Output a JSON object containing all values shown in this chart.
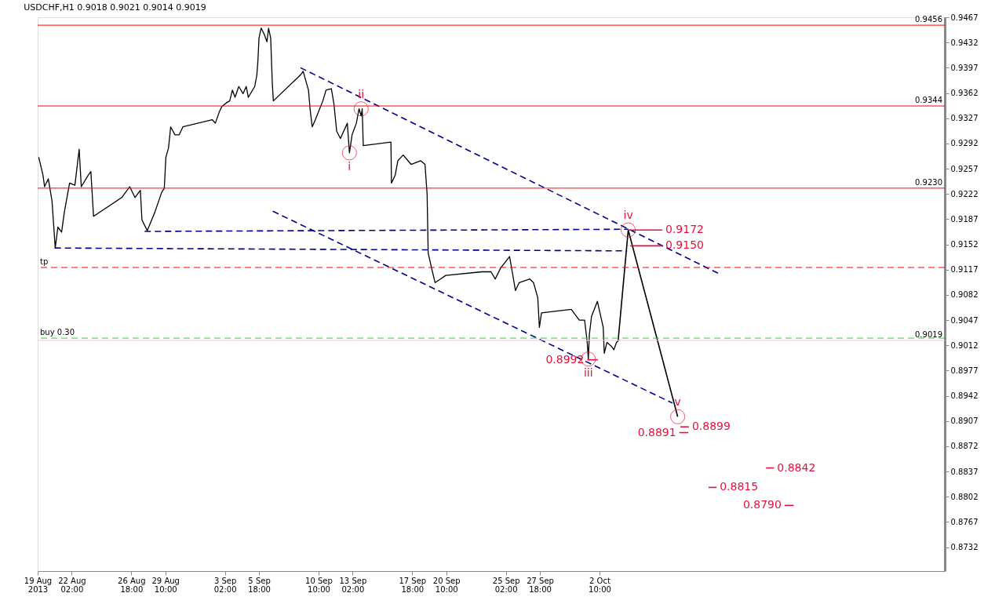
{
  "chart_data": {
    "type": "line",
    "title": "USDCHF,H1  0.9018 0.9021 0.9014 0.9019",
    "xlim": [
      "2013-08-19T10:00",
      "2013-10-29T11:00"
    ],
    "ylim": [
      0.8699,
      0.9467
    ],
    "xticks": [
      {
        "value": "2013-08-19T10:00",
        "label": "19 Aug 2013"
      },
      {
        "value": "2013-08-22T02:00",
        "label": "22 Aug 02:00"
      },
      {
        "value": "2013-08-26T18:00",
        "label": "26 Aug 18:00"
      },
      {
        "value": "2013-08-29T10:00",
        "label": "29 Aug 10:00"
      },
      {
        "value": "2013-09-03T02:00",
        "label": "3 Sep 02:00"
      },
      {
        "value": "2013-09-05T18:00",
        "label": "5 Sep 18:00"
      },
      {
        "value": "2013-09-10T10:00",
        "label": "10 Sep 10:00"
      },
      {
        "value": "2013-09-13T02:00",
        "label": "13 Sep 02:00"
      },
      {
        "value": "2013-09-17T18:00",
        "label": "17 Sep 18:00"
      },
      {
        "value": "2013-09-20T10:00",
        "label": "20 Sep 10:00"
      },
      {
        "value": "2013-09-25T02:00",
        "label": "25 Sep 02:00"
      },
      {
        "value": "2013-09-27T18:00",
        "label": "27 Sep 18:00"
      },
      {
        "value": "2013-10-02T10:00",
        "label": "2 Oct 10:00"
      }
    ],
    "yticks": [
      0.8732,
      0.8767,
      0.8802,
      0.8837,
      0.8872,
      0.8907,
      0.8942,
      0.8977,
      0.9012,
      0.9047,
      0.9082,
      0.9117,
      0.9152,
      0.9187,
      0.9222,
      0.9257,
      0.9292,
      0.9327,
      0.9362,
      0.9397,
      0.9432,
      0.9467
    ],
    "grid": false,
    "series": [
      {
        "color": "#000000",
        "line_style": "solid",
        "x": [
          "2013-08-19T12:00",
          "2013-08-19T20:00",
          "2013-08-19T23:00",
          "2013-08-20T06:00",
          "2013-08-20T13:00",
          "2013-08-20T19:00",
          "2013-08-21T00:00",
          "2013-08-21T07:00",
          "2013-08-21T12:00",
          "2013-08-21T22:00",
          "2013-08-22T08:00",
          "2013-08-22T16:00",
          "2013-08-22T20:00",
          "2013-08-23T09:00",
          "2013-08-23T14:00",
          "2013-08-23T19:00",
          "2013-08-26T00:00",
          "2013-08-26T15:00",
          "2013-08-27T01:00",
          "2013-08-27T11:00",
          "2013-08-27T14:00",
          "2013-08-28T00:00",
          "2013-08-28T14:00",
          "2013-08-29T03:00",
          "2013-08-29T08:00",
          "2013-08-29T11:00",
          "2013-08-29T16:00",
          "2013-08-29T20:00",
          "2013-08-30T04:00",
          "2013-08-30T12:00",
          "2013-08-30T19:00",
          "2013-09-02T02:00",
          "2013-09-02T08:00",
          "2013-09-02T15:00",
          "2013-09-02T20:00",
          "2013-09-03T04:00",
          "2013-09-03T11:00",
          "2013-09-03T16:00",
          "2013-09-03T21:00",
          "2013-09-04T04:00",
          "2013-09-04T12:00",
          "2013-09-04T18:00",
          "2013-09-04T22:00",
          "2013-09-05T10:00",
          "2013-09-05T14:00",
          "2013-09-05T16:00",
          "2013-09-05T18:00",
          "2013-09-05T22:00",
          "2013-09-06T04:00",
          "2013-09-06T09:00",
          "2013-09-06T12:00",
          "2013-09-06T16:00",
          "2013-09-06T19:00",
          "2013-09-06T21:00",
          "2013-09-09T00:00",
          "2013-09-09T05:00",
          "2013-09-09T15:00",
          "2013-09-09T18:00",
          "2013-09-09T22:00",
          "2013-09-10T04:00",
          "2013-09-10T18:00",
          "2013-09-11T00:00",
          "2013-09-11T10:00",
          "2013-09-11T15:00",
          "2013-09-11T20:00",
          "2013-09-12T03:00",
          "2013-09-12T16:00",
          "2013-09-12T20:00",
          "2013-09-13T01:00",
          "2013-09-13T09:00",
          "2013-09-13T14:00",
          "2013-09-13T18:00",
          "2013-09-13T20:00",
          "2013-09-13T22:00",
          "2013-09-16T02:00",
          "2013-09-16T03:00",
          "2013-09-16T10:00",
          "2013-09-16T15:00",
          "2013-09-17T01:00",
          "2013-09-17T16:00",
          "2013-09-18T10:00",
          "2013-09-18T18:00",
          "2013-09-18T22:00",
          "2013-09-19T00:00",
          "2013-09-19T08:00",
          "2013-09-19T13:00",
          "2013-09-19T23:00",
          "2013-09-20T09:00",
          "2013-09-23T05:00",
          "2013-09-23T22:00",
          "2013-09-24T06:00",
          "2013-09-24T16:00",
          "2013-09-25T09:00",
          "2013-09-25T14:00",
          "2013-09-25T20:00",
          "2013-09-26T03:00",
          "2013-09-26T23:00",
          "2013-09-27T06:00",
          "2013-09-27T14:00",
          "2013-09-27T17:00",
          "2013-09-27T21:00",
          "2013-09-30T05:00",
          "2013-09-30T20:00",
          "2013-10-01T06:00",
          "2013-10-01T11:00",
          "2013-10-01T13:00",
          "2013-10-01T15:00",
          "2013-10-01T19:00",
          "2013-10-02T06:00",
          "2013-10-02T14:00",
          "2013-10-02T17:00",
          "2013-10-02T19:00",
          "2013-10-03T00:00",
          "2013-10-03T08:00",
          "2013-10-03T13:00",
          "2013-10-03T18:00",
          "2013-10-03T21:00"
        ],
        "values": [
          0.9273,
          0.9248,
          0.9232,
          0.9243,
          0.9212,
          0.9147,
          0.9176,
          0.9169,
          0.9196,
          0.9237,
          0.9234,
          0.9284,
          0.9232,
          0.9248,
          0.9253,
          0.9191,
          0.9217,
          0.9232,
          0.9217,
          0.9227,
          0.9186,
          0.9171,
          0.9196,
          0.9224,
          0.923,
          0.9273,
          0.9286,
          0.9315,
          0.9304,
          0.9304,
          0.9315,
          0.9325,
          0.932,
          0.9335,
          0.9343,
          0.9348,
          0.9351,
          0.9366,
          0.9356,
          0.9371,
          0.9361,
          0.9371,
          0.9356,
          0.9371,
          0.9387,
          0.9407,
          0.9438,
          0.9452,
          0.9443,
          0.9433,
          0.9452,
          0.9438,
          0.9376,
          0.9351,
          0.9387,
          0.9392,
          0.9366,
          0.934,
          0.9315,
          0.9325,
          0.9351,
          0.9366,
          0.9368,
          0.9346,
          0.9309,
          0.9299,
          0.932,
          0.9279,
          0.9304,
          0.932,
          0.934,
          0.933,
          0.934,
          0.9289,
          0.9294,
          0.9237,
          0.9248,
          0.9268,
          0.9276,
          0.9263,
          0.9268,
          0.9263,
          0.9222,
          0.914,
          0.9114,
          0.9099,
          0.9104,
          0.9109,
          0.9114,
          0.9114,
          0.9104,
          0.9119,
          0.9135,
          0.9114,
          0.9088,
          0.9099,
          0.9104,
          0.9099,
          0.9078,
          0.9037,
          0.9057,
          0.9062,
          0.9047,
          0.9047,
          0.9016,
          0.8993,
          0.9027,
          0.9052,
          0.9073,
          0.9047,
          0.9037,
          0.9001,
          0.9016,
          0.9011,
          0.9006,
          0.9016,
          0.9018
        ]
      },
      {
        "color": "#000000",
        "line_style": "solid",
        "x": [
          "2013-10-03T21:00",
          "2013-10-04T16:00",
          "2013-10-08T13:00"
        ],
        "values": [
          0.9018,
          0.9172,
          0.8913
        ]
      },
      {
        "color": "#00008b",
        "line_style": "dashed",
        "x": [
          "2013-09-09T00:00",
          "2013-10-11T17:00"
        ],
        "values": [
          0.9397,
          0.9112
        ]
      },
      {
        "color": "#00008b",
        "line_style": "dashed",
        "x": [
          "2013-09-06T20:00",
          "2013-10-08T03:00"
        ],
        "values": [
          0.9198,
          0.8932
        ]
      },
      {
        "color": "#00008b",
        "line_style": "dashed",
        "x": [
          "2013-08-27T19:00",
          "2013-10-04T16:00"
        ],
        "values": [
          0.917,
          0.9173
        ]
      },
      {
        "color": "#00008b",
        "line_style": "dashed",
        "x": [
          "2013-08-20T18:00",
          "2013-10-04T14:00"
        ],
        "values": [
          0.9147,
          0.9143
        ]
      },
      {
        "name": "0.9172",
        "color": "#e8103a",
        "line_style": "solid",
        "x": [
          "2013-10-04T16:00",
          "2013-10-07T08:00"
        ],
        "values": [
          0.9172,
          0.9172
        ]
      },
      {
        "name": "0.9150",
        "color": "#e8103a",
        "line_style": "solid",
        "x": [
          "2013-10-04T20:00",
          "2013-10-07T08:00"
        ],
        "values": [
          0.915,
          0.915
        ]
      },
      {
        "name": "0.8992",
        "color": "#e8103a",
        "line_style": "solid",
        "x": [
          "2013-10-02T07:00",
          "2013-10-01T11:00"
        ],
        "values": [
          0.8992,
          0.8992
        ]
      },
      {
        "name": "0.8891",
        "color": "#e8103a",
        "line_style": "solid",
        "x": [
          "2013-10-09T09:00",
          "2013-10-08T16:00"
        ],
        "values": [
          0.8891,
          0.8891
        ]
      },
      {
        "name": "0.8899",
        "color": "#e8103a",
        "line_style": "solid",
        "x": [
          "2013-10-08T18:00",
          "2013-10-09T10:00"
        ],
        "values": [
          0.8899,
          0.8899
        ]
      },
      {
        "name": "0.8842",
        "color": "#e8103a",
        "line_style": "solid",
        "x": [
          "2013-10-15T11:00",
          "2013-10-16T02:00"
        ],
        "values": [
          0.8842,
          0.8842
        ]
      },
      {
        "name": "0.8815",
        "color": "#e8103a",
        "line_style": "solid",
        "x": [
          "2013-10-10T23:00",
          "2013-10-11T14:00"
        ],
        "values": [
          0.8815,
          0.8815
        ]
      },
      {
        "name": "0.8790",
        "color": "#e8103a",
        "line_style": "solid",
        "x": [
          "2013-10-17T15:00",
          "2013-10-16T22:00"
        ],
        "values": [
          0.879,
          0.879
        ]
      }
    ],
    "ref_lines": [
      {
        "axis": "y",
        "value": 0.9456,
        "label": "0.9456",
        "color": "#ff0000",
        "line_style": "solid"
      },
      {
        "axis": "y",
        "value": 0.9344,
        "label": "0.9344",
        "color": "#ff0000",
        "line_style": "solid"
      },
      {
        "axis": "y",
        "value": 0.923,
        "label": "0.9230",
        "color": "#ff0000",
        "line_style": "solid"
      },
      {
        "axis": "y",
        "value": 0.912,
        "label": "tp",
        "color": "#ff0000",
        "line_style": "dashed"
      },
      {
        "axis": "y",
        "value": 0.9022,
        "label": "buy 0.30",
        "color": "#32cd32",
        "line_style": "dashed"
      },
      {
        "axis": "y",
        "value": 0.9019,
        "label": "0.9019",
        "color": "#ffc0cb",
        "line_style": "solid"
      }
    ],
    "annotations": [
      {
        "text": "i",
        "x": "2013-09-12T20:00",
        "y": 0.9279
      },
      {
        "text": "ii",
        "x": "2013-09-13T18:00",
        "y": 0.934
      },
      {
        "text": "iii",
        "x": "2013-10-01T13:00",
        "y": 0.8993
      },
      {
        "text": "iv",
        "x": "2013-10-04T16:00",
        "y": 0.9172
      },
      {
        "text": "v",
        "x": "2013-10-08T13:00",
        "y": 0.8913
      }
    ]
  }
}
